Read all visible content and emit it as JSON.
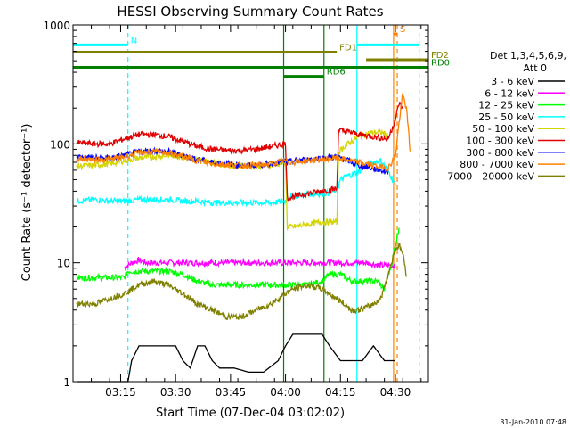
{
  "chart_data": {
    "type": "line",
    "title": "HESSI Observing Summary Count Rates",
    "xlabel": "Start Time (07-Dec-04 03:02:02)",
    "ylabel": "Count Rate (s⁻¹ detector⁻¹)",
    "yscale": "log",
    "ylim": [
      1,
      1000
    ],
    "xlim_minutes": [
      0,
      97
    ],
    "x_units": "minutes after 03:02:02",
    "x_tick_labels": [
      "03:15",
      "03:30",
      "03:45",
      "04:00",
      "04:15",
      "04:30"
    ],
    "x_tick_minutes": [
      13,
      28,
      43,
      58,
      73,
      88
    ],
    "y_tick_labels": [
      "1",
      "10",
      "100",
      "1000"
    ],
    "y_tick_values": [
      1,
      10,
      100,
      1000
    ],
    "grid": false,
    "legend_placement": "right, outside plot",
    "legend_header": "Det 1,3,4,5,6,9,",
    "legend_attenuator": "Att 0",
    "footer_stamp": "31-Jan-2010 07:48",
    "series": [
      {
        "name": "3 - 6 keV",
        "color": "#000000",
        "x": [
          1,
          15,
          16,
          18,
          20,
          22,
          26,
          28,
          30,
          32,
          34,
          36,
          38,
          40,
          44,
          48,
          52,
          56,
          58,
          60,
          62,
          64,
          66,
          68,
          70,
          73,
          76,
          79,
          82,
          85,
          88
        ],
        "y": [
          1,
          1,
          1.5,
          2,
          2,
          2,
          2,
          2,
          1.5,
          1.3,
          2,
          2,
          1.5,
          1.3,
          1.3,
          1.2,
          1.2,
          1.5,
          2,
          2.5,
          2.5,
          2.5,
          2.5,
          2.5,
          2,
          1.5,
          1.5,
          1.5,
          2,
          1.5,
          1.5
        ]
      },
      {
        "name": "6 - 12 keV",
        "color": "#ff00ff",
        "x": [
          14,
          16,
          18,
          20,
          24,
          28,
          32,
          36,
          40,
          44,
          48,
          52,
          56,
          60,
          64,
          68,
          72,
          76,
          80,
          84,
          88
        ],
        "y": [
          9,
          10,
          10.5,
          10,
          10,
          10,
          10,
          10,
          10,
          10,
          10,
          10,
          10,
          10,
          10,
          10,
          10,
          10,
          10,
          9.5,
          9.5
        ]
      },
      {
        "name": "12 - 25 keV",
        "color": "#00ff00",
        "x": [
          1,
          8,
          14,
          15,
          18,
          22,
          26,
          30,
          34,
          38,
          42,
          46,
          50,
          54,
          58,
          60,
          64,
          68,
          70,
          73,
          76,
          80,
          83,
          85,
          87,
          89
        ],
        "y": [
          7.5,
          7.5,
          7.5,
          8.5,
          8.5,
          8.5,
          8.5,
          8,
          7,
          6.5,
          6.5,
          6.5,
          6.5,
          6.5,
          6.5,
          6.5,
          6.5,
          7,
          8,
          8,
          7,
          7,
          7,
          6,
          10,
          20
        ]
      },
      {
        "name": "25 - 50 keV",
        "color": "#00ffff",
        "x": [
          1,
          6,
          10,
          14,
          18,
          22,
          26,
          30,
          34,
          38,
          42,
          46,
          50,
          54,
          58,
          58.5,
          60,
          64,
          68,
          72,
          73,
          75,
          78,
          80,
          82,
          84,
          86,
          88
        ],
        "y": [
          33,
          34,
          33,
          33,
          34,
          34,
          34,
          33,
          33,
          32,
          32,
          32,
          32,
          32,
          33,
          36,
          36,
          38,
          38,
          40,
          50,
          54,
          58,
          66,
          70,
          72,
          60,
          45
        ]
      },
      {
        "name": "50 - 100 keV",
        "color": "#d4d400",
        "x": [
          1,
          6,
          10,
          14,
          18,
          22,
          26,
          30,
          34,
          38,
          42,
          46,
          50,
          54,
          58,
          58.5,
          60,
          64,
          68,
          72,
          72.5,
          74,
          76,
          78,
          80,
          82,
          84,
          86
        ],
        "y": [
          65,
          66,
          68,
          72,
          76,
          78,
          80,
          78,
          74,
          70,
          66,
          65,
          65,
          66,
          70,
          20,
          20,
          21,
          22,
          22,
          85,
          95,
          105,
          115,
          120,
          125,
          125,
          118
        ]
      },
      {
        "name": "100 - 300 keV",
        "color": "#e00000",
        "x": [
          1,
          6,
          10,
          14,
          18,
          22,
          26,
          30,
          34,
          38,
          42,
          46,
          50,
          54,
          58,
          58.5,
          60,
          64,
          68,
          72,
          72.5,
          74,
          76,
          78,
          80,
          82,
          84,
          86,
          88,
          89,
          90
        ],
        "y": [
          102,
          100,
          100,
          110,
          120,
          120,
          115,
          105,
          95,
          90,
          88,
          88,
          90,
          95,
          100,
          35,
          36,
          38,
          40,
          42,
          130,
          128,
          125,
          120,
          118,
          115,
          112,
          110,
          160,
          220,
          200
        ]
      },
      {
        "name": "300 - 800 keV",
        "color": "#0000ff",
        "x": [
          1,
          6,
          10,
          14,
          18,
          22,
          26,
          30,
          34,
          38,
          42,
          46,
          50,
          54,
          58,
          58.5,
          60,
          64,
          68,
          72,
          74,
          76,
          78,
          80,
          82,
          84,
          86
        ],
        "y": [
          78,
          76,
          76,
          80,
          86,
          88,
          86,
          80,
          74,
          70,
          68,
          66,
          66,
          68,
          72,
          70,
          72,
          74,
          76,
          78,
          75,
          70,
          66,
          64,
          62,
          60,
          58
        ]
      },
      {
        "name": "800 - 7000 keV",
        "color": "#ff8000",
        "x": [
          1,
          6,
          10,
          14,
          18,
          22,
          26,
          30,
          34,
          38,
          42,
          46,
          50,
          54,
          58,
          60,
          64,
          68,
          72,
          74,
          76,
          78,
          80,
          82,
          84,
          86,
          88,
          89,
          90,
          91,
          92
        ],
        "y": [
          75,
          74,
          74,
          78,
          84,
          86,
          84,
          78,
          72,
          68,
          67,
          66,
          66,
          68,
          72,
          70,
          72,
          74,
          76,
          74,
          72,
          70,
          68,
          66,
          64,
          62,
          80,
          150,
          260,
          200,
          90
        ]
      },
      {
        "name": "7000 - 20000 keV",
        "color": "#808000",
        "x": [
          1,
          6,
          10,
          14,
          18,
          22,
          26,
          30,
          34,
          38,
          42,
          46,
          50,
          54,
          58,
          60,
          64,
          68,
          72,
          74,
          76,
          78,
          80,
          82,
          84,
          86,
          88,
          89,
          90,
          91
        ],
        "y": [
          4.5,
          4.5,
          5,
          5.5,
          6.5,
          7,
          6.5,
          5.5,
          4.5,
          4,
          3.5,
          3.5,
          4,
          4.5,
          5.5,
          6,
          6.5,
          6,
          5,
          4.5,
          4,
          4,
          4.2,
          4.5,
          5,
          8,
          13,
          14,
          12,
          8
        ]
      }
    ],
    "annotations": [
      {
        "label": "N",
        "color": "#00ffff",
        "x_start": 0,
        "x_end": 15,
        "y": 680
      },
      {
        "label": "FD1",
        "color": "#808000",
        "x_start": 0,
        "x_end": 72,
        "y": 590
      },
      {
        "label": "FD2",
        "color": "#808000",
        "x_start": 80,
        "x_end": 97,
        "y": 510
      },
      {
        "label": "RD0",
        "color": "#008000",
        "x_start": 0,
        "x_end": 97,
        "y": 440
      },
      {
        "label": "RD6",
        "color": "#008000",
        "x_start": 57.5,
        "x_end": 68.5,
        "y": 370
      },
      {
        "label": "S",
        "color": "#ff8000",
        "x_start": 87.5,
        "x_end": 88.5,
        "y": 840
      },
      {
        "label": "",
        "color": "#00ffff",
        "x_start": 77.5,
        "x_end": 94.5,
        "y": 680
      }
    ],
    "vertical_markers": [
      {
        "color": "#00ffff",
        "style": "solid",
        "x": 77.5
      },
      {
        "color": "#00ffff",
        "style": "dashed",
        "x": 15
      },
      {
        "color": "#00ffff",
        "style": "dashed",
        "x": 94.5
      },
      {
        "color": "#ff8000",
        "style": "solid",
        "x": 87.5
      },
      {
        "color": "#ff8000",
        "style": "dashed",
        "x": 88.5
      },
      {
        "color": "#008000",
        "style": "solid",
        "x": 57.5
      },
      {
        "color": "#008000",
        "style": "solid",
        "x": 68.5
      }
    ]
  }
}
